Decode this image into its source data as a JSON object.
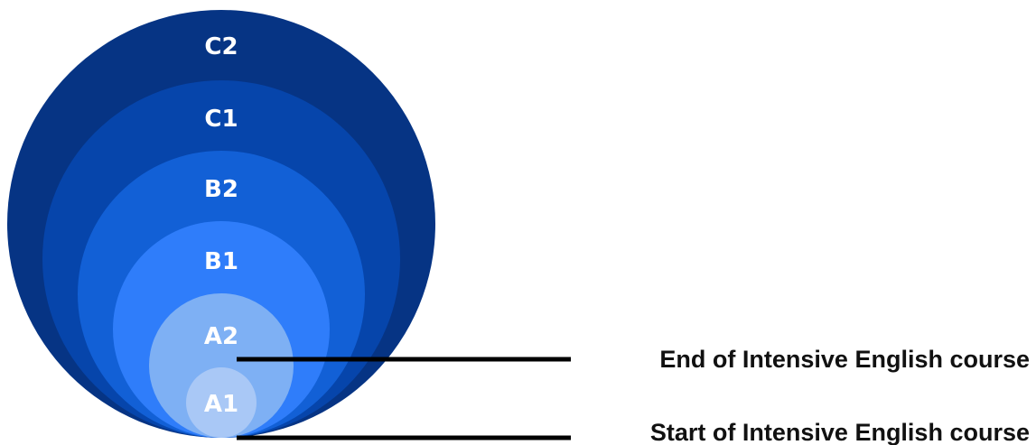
{
  "levels": [
    {
      "label": "C2",
      "color": "#063484"
    },
    {
      "label": "C1",
      "color": "#0645ab"
    },
    {
      "label": "B2",
      "color": "#1260d6"
    },
    {
      "label": "B1",
      "color": "#2f7dfa"
    },
    {
      "label": "A2",
      "color": "#7eb0f4"
    },
    {
      "label": "A1",
      "color": "#a9c8f6"
    }
  ],
  "annotations": {
    "end_label": "End of Intensive English course",
    "start_label": "Start of Intensive English course"
  }
}
